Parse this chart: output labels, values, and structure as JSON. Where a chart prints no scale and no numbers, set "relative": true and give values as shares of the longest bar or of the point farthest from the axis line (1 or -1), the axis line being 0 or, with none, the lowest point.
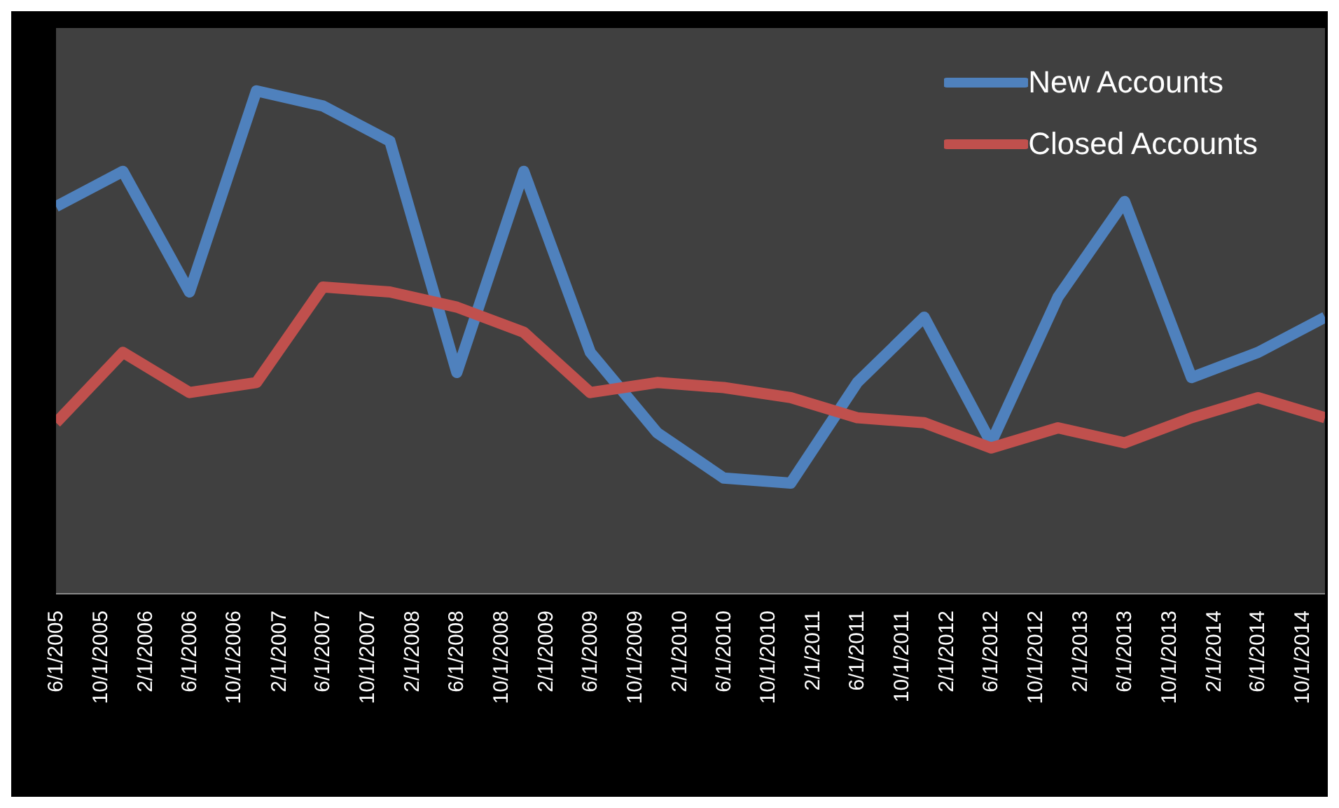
{
  "chart_data": {
    "type": "line",
    "relative": true,
    "legend": "top right",
    "marker": "none",
    "line_style": "solid",
    "x": [
      "2005-06-01",
      "2005-12-01",
      "2006-06-01",
      "2006-12-01",
      "2007-06-01",
      "2007-12-01",
      "2008-06-01",
      "2008-12-01",
      "2009-06-01",
      "2009-12-01",
      "2010-06-01",
      "2010-12-01",
      "2011-06-01",
      "2011-12-01",
      "2012-06-01",
      "2012-12-01",
      "2013-06-01",
      "2013-12-01",
      "2014-06-01",
      "2014-12-01"
    ],
    "xlim": [
      "2005-06-01",
      "2014-12-01"
    ],
    "xticks": [
      {
        "value": "2005-06-01",
        "label": "6/1/2005"
      },
      {
        "value": "2005-10-01",
        "label": "10/1/2005"
      },
      {
        "value": "2006-02-01",
        "label": "2/1/2006"
      },
      {
        "value": "2006-06-01",
        "label": "6/1/2006"
      },
      {
        "value": "2006-10-01",
        "label": "10/1/2006"
      },
      {
        "value": "2007-02-01",
        "label": "2/1/2007"
      },
      {
        "value": "2007-06-01",
        "label": "6/1/2007"
      },
      {
        "value": "2007-10-01",
        "label": "10/1/2007"
      },
      {
        "value": "2008-02-01",
        "label": "2/1/2008"
      },
      {
        "value": "2008-06-01",
        "label": "6/1/2008"
      },
      {
        "value": "2008-10-01",
        "label": "10/1/2008"
      },
      {
        "value": "2009-02-01",
        "label": "2/1/2009"
      },
      {
        "value": "2009-06-01",
        "label": "6/1/2009"
      },
      {
        "value": "2009-10-01",
        "label": "10/1/2009"
      },
      {
        "value": "2010-02-01",
        "label": "2/1/2010"
      },
      {
        "value": "2010-06-01",
        "label": "6/1/2010"
      },
      {
        "value": "2010-10-01",
        "label": "10/1/2010"
      },
      {
        "value": "2011-02-01",
        "label": "2/1/2011"
      },
      {
        "value": "2011-06-01",
        "label": "6/1/2011"
      },
      {
        "value": "2011-10-01",
        "label": "10/1/2011"
      },
      {
        "value": "2012-02-01",
        "label": "2/1/2012"
      },
      {
        "value": "2012-06-01",
        "label": "6/1/2012"
      },
      {
        "value": "2012-10-01",
        "label": "10/1/2012"
      },
      {
        "value": "2013-02-01",
        "label": "2/1/2013"
      },
      {
        "value": "2013-06-01",
        "label": "6/1/2013"
      },
      {
        "value": "2013-10-01",
        "label": "10/1/2013"
      },
      {
        "value": "2014-02-01",
        "label": "2/1/2014"
      },
      {
        "value": "2014-06-01",
        "label": "6/1/2014"
      },
      {
        "value": "2014-10-01",
        "label": "10/1/2014"
      }
    ],
    "series": [
      {
        "name": "New Accounts",
        "color": "#4f81bd",
        "values": [
          0.77,
          0.84,
          0.6,
          1,
          0.97,
          0.9,
          0.44,
          0.84,
          0.48,
          0.32,
          0.23,
          0.22,
          0.42,
          0.55,
          0.3,
          0.59,
          0.78,
          0.43,
          0.48,
          0.55
        ]
      },
      {
        "name": "Closed Accounts",
        "color": "#c0504d",
        "values": [
          0.34,
          0.48,
          0.4,
          0.42,
          0.61,
          0.6,
          0.57,
          0.52,
          0.4,
          0.42,
          0.41,
          0.39,
          0.35,
          0.34,
          0.29,
          0.33,
          0.3,
          0.35,
          0.39,
          0.35
        ]
      }
    ]
  }
}
